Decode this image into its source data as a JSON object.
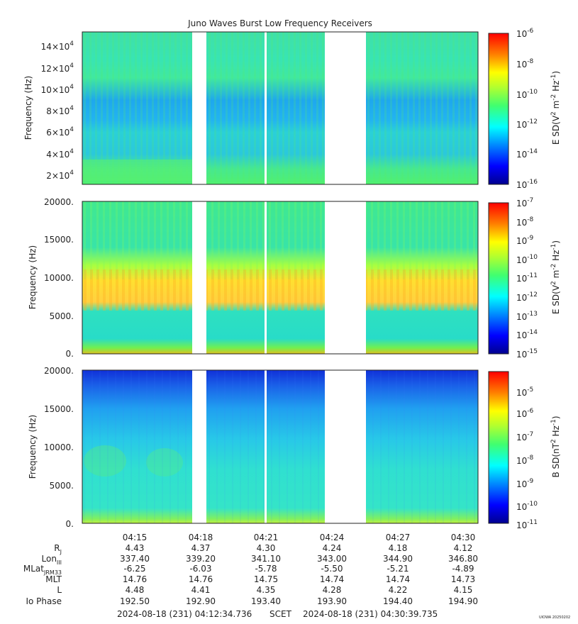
{
  "title": "Juno Waves Burst Low Frequency Receivers",
  "colors": {
    "gap": "#ffffff",
    "colormap": [
      "#00008f",
      "#0000ff",
      "#007fff",
      "#00ffff",
      "#7fff7f",
      "#ffff00",
      "#ff7f00",
      "#ff0000",
      "#7f0000"
    ]
  },
  "time_ticks": [
    "04:15",
    "04:18",
    "04:21",
    "04:24",
    "04:27",
    "04:30"
  ],
  "ephemeris": {
    "labels": [
      {
        "main": "R",
        "sub": "J"
      },
      {
        "main": "Lon",
        "sub": "III"
      },
      {
        "main": "MLat",
        "sub": "JRM33"
      },
      {
        "main": "MLT",
        "sub": ""
      },
      {
        "main": "L",
        "sub": ""
      },
      {
        "main": "Io Phase",
        "sub": ""
      }
    ],
    "rows": [
      [
        "4.43",
        "4.37",
        "4.30",
        "4.24",
        "4.18",
        "4.12"
      ],
      [
        "337.40",
        "339.20",
        "341.10",
        "343.00",
        "344.90",
        "346.80"
      ],
      [
        "-6.25",
        "-6.03",
        "-5.78",
        "-5.50",
        "-5.21",
        "-4.89"
      ],
      [
        "14.76",
        "14.76",
        "14.75",
        "14.74",
        "14.74",
        "14.73"
      ],
      [
        "4.48",
        "4.41",
        "4.35",
        "4.28",
        "4.22",
        "4.15"
      ],
      [
        "192.50",
        "192.90",
        "193.40",
        "193.90",
        "194.40",
        "194.90"
      ]
    ]
  },
  "footer": {
    "start": "2024-08-18 (231) 04:12:34.736",
    "scet": "SCET",
    "end": "2024-08-18 (231) 04:30:39.735",
    "credit": "UIOWA 20250202"
  },
  "chart_data": [
    {
      "type": "heatmap",
      "panel": "top",
      "ylabel": "Frequency (Hz)",
      "yticks": [
        {
          "m": "2×10",
          "e": "4"
        },
        {
          "m": "4×10",
          "e": "4"
        },
        {
          "m": "6×10",
          "e": "4"
        },
        {
          "m": "8×10",
          "e": "4"
        },
        {
          "m": "10×10",
          "e": "4"
        },
        {
          "m": "12×10",
          "e": "4"
        },
        {
          "m": "14×10",
          "e": "4"
        }
      ],
      "ylim": [
        10000,
        150000
      ],
      "colorbar_label": {
        "pre": "E SD(V",
        "e1": "2",
        "mid": " m",
        "e2": "-2",
        "mid2": " Hz",
        "e3": "-1",
        "post": ")"
      },
      "colorbar_ticks": [
        "-6",
        "-8",
        "-10",
        "-12",
        "-14",
        "-16"
      ],
      "colorbar_range_exp": [
        -16,
        -6
      ]
    },
    {
      "type": "heatmap",
      "panel": "middle",
      "ylabel": "Frequency (Hz)",
      "yticks": [
        {
          "m": "0.",
          "e": ""
        },
        {
          "m": "5000.",
          "e": ""
        },
        {
          "m": "10000.",
          "e": ""
        },
        {
          "m": "15000.",
          "e": ""
        },
        {
          "m": "20000.",
          "e": ""
        }
      ],
      "ylim": [
        0,
        20000
      ],
      "colorbar_label": {
        "pre": "E SD(V",
        "e1": "2",
        "mid": " m",
        "e2": "-2",
        "mid2": " Hz",
        "e3": "-1",
        "post": ")"
      },
      "colorbar_ticks": [
        "-7",
        "-8",
        "-9",
        "-10",
        "-11",
        "-12",
        "-13",
        "-14",
        "-15"
      ],
      "colorbar_range_exp": [
        -15,
        -7
      ]
    },
    {
      "type": "heatmap",
      "panel": "bottom",
      "ylabel": "Frequency (Hz)",
      "yticks": [
        {
          "m": "0.",
          "e": ""
        },
        {
          "m": "5000.",
          "e": ""
        },
        {
          "m": "10000.",
          "e": ""
        },
        {
          "m": "15000.",
          "e": ""
        },
        {
          "m": "20000.",
          "e": ""
        }
      ],
      "ylim": [
        0,
        20000
      ],
      "colorbar_label": {
        "pre": "B SD(nT",
        "e1": "2",
        "mid": " Hz",
        "e2": "-1",
        "mid2": "",
        "e3": "",
        "post": ")"
      },
      "colorbar_ticks": [
        "-5",
        "-6",
        "-7",
        "-8",
        "-9",
        "-10",
        "-11"
      ],
      "colorbar_range_exp": [
        -11,
        -4.5
      ]
    }
  ]
}
